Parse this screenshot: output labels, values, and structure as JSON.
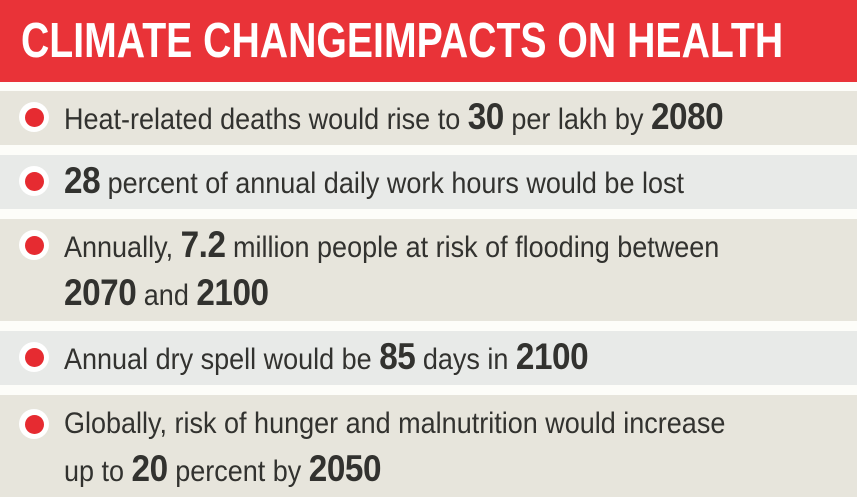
{
  "title": "CLIMATE CHANGEIMPACTS ON HEALTH",
  "colors": {
    "banner_red": "#e93338",
    "bullet_red": "#e62b31",
    "row_beige": "#e7e5dc",
    "row_gray": "#e8eae8",
    "text_dark": "#32322f",
    "banner_text": "#ffffff",
    "gap_white": "#fdfdf9"
  },
  "items": [
    {
      "lines": [
        [
          {
            "t": "Heat-related deaths would rise to ",
            "b": false
          },
          {
            "t": "30",
            "b": true
          },
          {
            "t": " per lakh by ",
            "b": false
          },
          {
            "t": "2080",
            "b": true
          }
        ]
      ]
    },
    {
      "lines": [
        [
          {
            "t": "28",
            "b": true
          },
          {
            "t": " percent of annual daily work hours would be lost",
            "b": false
          }
        ]
      ]
    },
    {
      "lines": [
        [
          {
            "t": "Annually, ",
            "b": false
          },
          {
            "t": "7.2",
            "b": true
          },
          {
            "t": " million people at risk of flooding between",
            "b": false
          }
        ],
        [
          {
            "t": "2070",
            "b": true
          },
          {
            "t": " and ",
            "b": false
          },
          {
            "t": "2100",
            "b": true
          }
        ]
      ]
    },
    {
      "lines": [
        [
          {
            "t": "Annual dry spell would be ",
            "b": false
          },
          {
            "t": "85",
            "b": true
          },
          {
            "t": " days in ",
            "b": false
          },
          {
            "t": "2100",
            "b": true
          }
        ]
      ]
    },
    {
      "lines": [
        [
          {
            "t": "Globally, risk of hunger and malnutrition would increase",
            "b": false
          }
        ],
        [
          {
            "t": "up to ",
            "b": false
          },
          {
            "t": "20",
            "b": true
          },
          {
            "t": " percent by ",
            "b": false
          },
          {
            "t": "2050",
            "b": true
          }
        ]
      ]
    }
  ]
}
